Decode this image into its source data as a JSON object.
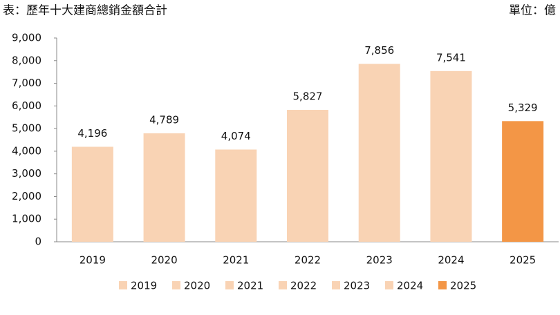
{
  "chart_data": {
    "type": "bar",
    "title": "表：歷年十大建商總銷金額合計",
    "unit": "單位：億",
    "categories": [
      "2019",
      "2020",
      "2021",
      "2022",
      "2023",
      "2024",
      "2025"
    ],
    "values": [
      4196,
      4789,
      4074,
      5827,
      7856,
      7541,
      5329
    ],
    "value_labels": [
      "4,196",
      "4,789",
      "4,074",
      "5,827",
      "7,856",
      "7,541",
      "5,329"
    ],
    "colors": [
      "#f9d3b4",
      "#f9d3b4",
      "#f9d3b4",
      "#f9d3b4",
      "#f9d3b4",
      "#f9d3b4",
      "#f39646"
    ],
    "ylim": [
      0,
      9000
    ],
    "yticks": [
      0,
      {
        "value": 1000,
        "label": "1,000"
      },
      {
        "value": 2000,
        "label": "2,000"
      },
      {
        "value": 3000,
        "label": "3,000"
      },
      {
        "value": 4000,
        "label": "4,000"
      },
      {
        "value": 5000,
        "label": "5,000"
      },
      {
        "value": 6000,
        "label": "6,000"
      },
      {
        "value": 7000,
        "label": "7,000"
      },
      {
        "value": 8000,
        "label": "8,000"
      },
      {
        "value": 9000,
        "label": "9,000"
      }
    ],
    "legend": "bottom"
  }
}
